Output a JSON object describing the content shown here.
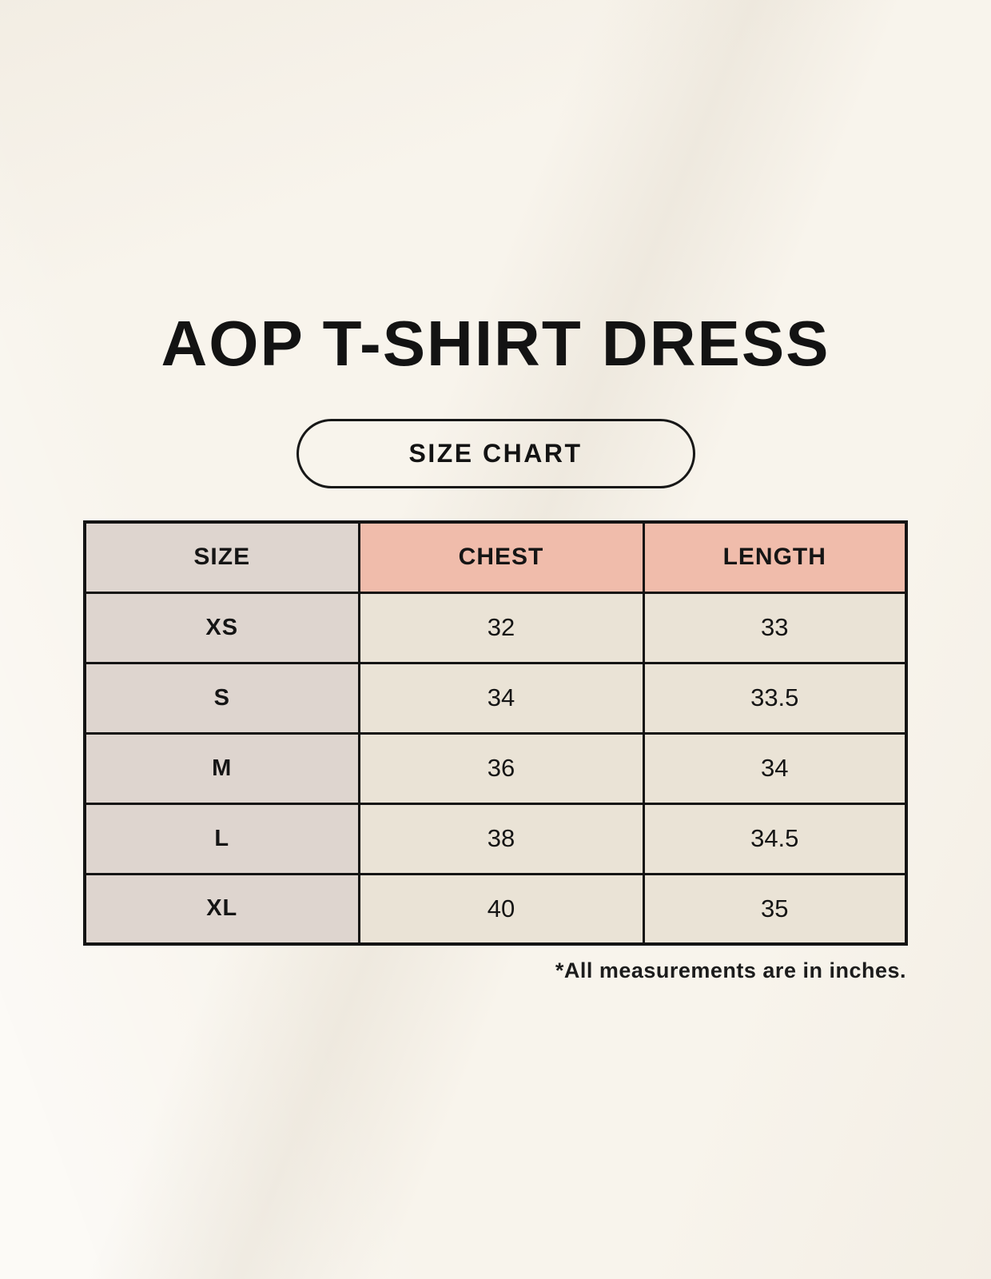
{
  "title": "AOP T-SHIRT DRESS",
  "badge": {
    "label": "SIZE CHART"
  },
  "table": {
    "columns": [
      "SIZE",
      "CHEST",
      "LENGTH"
    ],
    "rows": [
      {
        "size": "XS",
        "chest": "32",
        "length": "33"
      },
      {
        "size": "S",
        "chest": "34",
        "length": "33.5"
      },
      {
        "size": "M",
        "chest": "36",
        "length": "34"
      },
      {
        "size": "L",
        "chest": "38",
        "length": "34.5"
      },
      {
        "size": "XL",
        "chest": "40",
        "length": "35"
      }
    ],
    "footnote": "*All measurements are in inches."
  },
  "colors": {
    "background": "#f8f4ec",
    "size_column_bg": "#ded5cf",
    "measure_header_bg": "#f0bcab",
    "data_cell_bg": "#eae3d6",
    "border": "#141414",
    "text": "#131313"
  },
  "chart_data": {
    "type": "table",
    "title": "AOP T-SHIRT DRESS",
    "subtitle": "SIZE CHART",
    "columns": [
      "SIZE",
      "CHEST",
      "LENGTH"
    ],
    "rows": [
      [
        "XS",
        32,
        33
      ],
      [
        "S",
        34,
        33.5
      ],
      [
        "M",
        36,
        34
      ],
      [
        "L",
        38,
        34.5
      ],
      [
        "XL",
        40,
        35
      ]
    ],
    "note": "*All measurements are in inches.",
    "units": "inches"
  }
}
